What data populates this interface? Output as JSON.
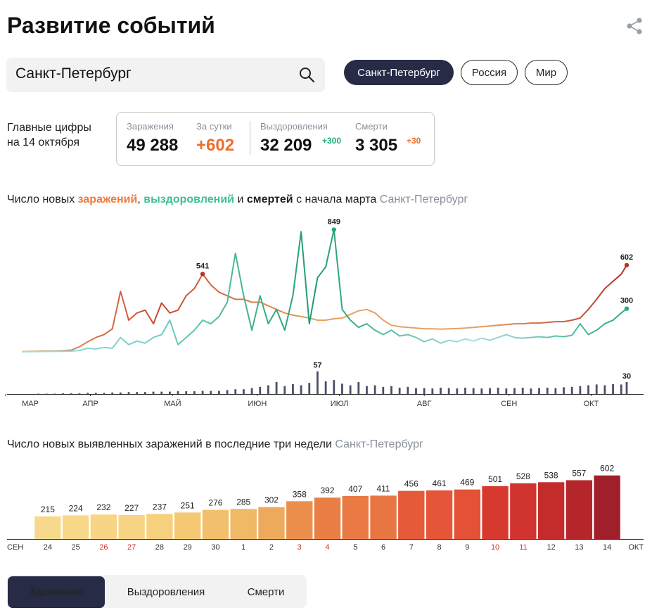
{
  "header": {
    "title": "Развитие событий"
  },
  "search": {
    "value": "Санкт-Петербург"
  },
  "region_tabs": [
    {
      "label": "Санкт-Петербург",
      "active": true
    },
    {
      "label": "Россия",
      "active": false
    },
    {
      "label": "Мир",
      "active": false
    }
  ],
  "summary": {
    "title": "Главные цифры",
    "date": "на 14 октября",
    "stats": [
      {
        "label": "Заражения",
        "value": "49 288"
      },
      {
        "label": "За сутки",
        "value": "+602"
      },
      {
        "label": "Выздоровления",
        "value": "32 209",
        "delta": "+300"
      },
      {
        "label": "Смерти",
        "value": "3 305",
        "delta": "+30"
      }
    ]
  },
  "chart_data": [
    {
      "type": "line",
      "title_parts": [
        "Число новых",
        "заражений",
        ",",
        "выздоровлений",
        "и",
        "смертей",
        "с начала марта"
      ],
      "subtitle": "Санкт-Петербург",
      "x": [
        6,
        9,
        12,
        15,
        18,
        21,
        24,
        27,
        30,
        33,
        36,
        39,
        42,
        45,
        48,
        51,
        54,
        57,
        60,
        63,
        66,
        69,
        72,
        75,
        78,
        81,
        84,
        87,
        90,
        93,
        96,
        99,
        102,
        105,
        108,
        111,
        114,
        117,
        120,
        123,
        126,
        129,
        132,
        135,
        138,
        141,
        144,
        147,
        150,
        153,
        156,
        159,
        162,
        165,
        168,
        171,
        174,
        177,
        180,
        183,
        186,
        189,
        192,
        195,
        198,
        201,
        204,
        207,
        210,
        213,
        216,
        219,
        222,
        225,
        227
      ],
      "xlim": [
        0,
        227
      ],
      "xticks": [
        {
          "value": 0,
          "label": "МАР"
        },
        {
          "value": 31,
          "label": "АПР"
        },
        {
          "value": 61,
          "label": "МАЙ"
        },
        {
          "value": 92,
          "label": "ИЮН"
        },
        {
          "value": 122,
          "label": "ИЮЛ"
        },
        {
          "value": 153,
          "label": "АВГ"
        },
        {
          "value": 184,
          "label": "СЕН"
        },
        {
          "value": 214,
          "label": "ОКТ"
        }
      ],
      "ylim": [
        0,
        900
      ],
      "y2lim": [
        0,
        60
      ],
      "series": [
        {
          "type": "line",
          "colors": [
            "#eab06a",
            "#c9472f",
            "#e8a060",
            "#e6a263",
            "#b8302a"
          ],
          "values": [
            2,
            3,
            5,
            6,
            6,
            8,
            12,
            35,
            70,
            100,
            120,
            160,
            420,
            220,
            270,
            290,
            195,
            340,
            270,
            290,
            390,
            440,
            541,
            465,
            415,
            390,
            365,
            365,
            345,
            345,
            320,
            295,
            270,
            255,
            245,
            235,
            220,
            220,
            230,
            235,
            260,
            285,
            295,
            270,
            220,
            185,
            175,
            170,
            165,
            160,
            160,
            158,
            160,
            162,
            165,
            170,
            175,
            180,
            185,
            190,
            195,
            195,
            200,
            200,
            205,
            210,
            210,
            220,
            235,
            295,
            365,
            440,
            490,
            540,
            602
          ]
        },
        {
          "type": "line",
          "colors": [
            "#a5dfe8",
            "#6fd0c0",
            "#1f9c6c",
            "#a5dfe8",
            "#2aa87a"
          ],
          "values": [
            0,
            1,
            2,
            3,
            3,
            4,
            5,
            10,
            25,
            20,
            30,
            25,
            100,
            50,
            75,
            60,
            100,
            120,
            220,
            50,
            100,
            150,
            220,
            195,
            245,
            345,
            685,
            390,
            150,
            390,
            195,
            295,
            150,
            390,
            835,
            195,
            515,
            590,
            849,
            295,
            220,
            170,
            195,
            150,
            120,
            150,
            110,
            120,
            100,
            70,
            90,
            60,
            80,
            70,
            90,
            75,
            95,
            80,
            100,
            120,
            100,
            95,
            100,
            105,
            100,
            110,
            105,
            115,
            195,
            120,
            150,
            195,
            220,
            270,
            300
          ]
        },
        {
          "type": "bar",
          "axis": "y2",
          "colors": [
            "#4a4f6a"
          ],
          "values": [
            0,
            0,
            1,
            1,
            1,
            2,
            2,
            2,
            3,
            3,
            3,
            4,
            4,
            5,
            5,
            5,
            6,
            6,
            6,
            7,
            7,
            7,
            8,
            8,
            8,
            10,
            12,
            12,
            15,
            18,
            22,
            30,
            20,
            25,
            22,
            28,
            57,
            32,
            35,
            26,
            22,
            30,
            20,
            22,
            18,
            20,
            16,
            18,
            15,
            15,
            14,
            16,
            15,
            14,
            16,
            15,
            14,
            15,
            16,
            14,
            15,
            16,
            14,
            15,
            16,
            15,
            17,
            18,
            20,
            22,
            24,
            22,
            25,
            24,
            30
          ]
        }
      ]
    },
    {
      "type": "bar",
      "title": "Число новых выявленных заражений в последние три недели",
      "subtitle": "Санкт-Петербург",
      "start_label": "СЕН",
      "end_label": "ОКТ",
      "categories": [
        "24",
        "25",
        "26",
        "27",
        "28",
        "29",
        "30",
        "1",
        "2",
        "3",
        "4",
        "5",
        "6",
        "7",
        "8",
        "9",
        "10",
        "11",
        "12",
        "13",
        "14"
      ],
      "values": [
        215,
        224,
        232,
        227,
        237,
        251,
        276,
        285,
        302,
        358,
        392,
        407,
        411,
        456,
        461,
        469,
        501,
        528,
        538,
        557,
        602
      ],
      "colors": [
        "#f7d98b",
        "#f7d888",
        "#f7d584",
        "#f7d584",
        "#f6d07d",
        "#f5c874",
        "#f2bf6c",
        "#f1b865",
        "#eeaa5c",
        "#ec8f4c",
        "#ea7e45",
        "#e97a43",
        "#e87642",
        "#e55a38",
        "#e45637",
        "#e35236",
        "#d63a2f",
        "#d1342e",
        "#c42c2c",
        "#b5262b",
        "#a01f2a"
      ],
      "category_label_colors": [
        "#333",
        "#333",
        "#d0312d",
        "#d0312d",
        "#333",
        "#333",
        "#333",
        "#333",
        "#333",
        "#d0312d",
        "#d0312d",
        "#333",
        "#333",
        "#333",
        "#333",
        "#333",
        "#d0312d",
        "#d0312d",
        "#333",
        "#333",
        "#333"
      ],
      "ylim": [
        0,
        620
      ]
    }
  ],
  "metric_tabs": [
    {
      "label": "Заражения",
      "active": true
    },
    {
      "label": "Выздоровления",
      "active": false
    },
    {
      "label": "Смерти",
      "active": false
    }
  ]
}
